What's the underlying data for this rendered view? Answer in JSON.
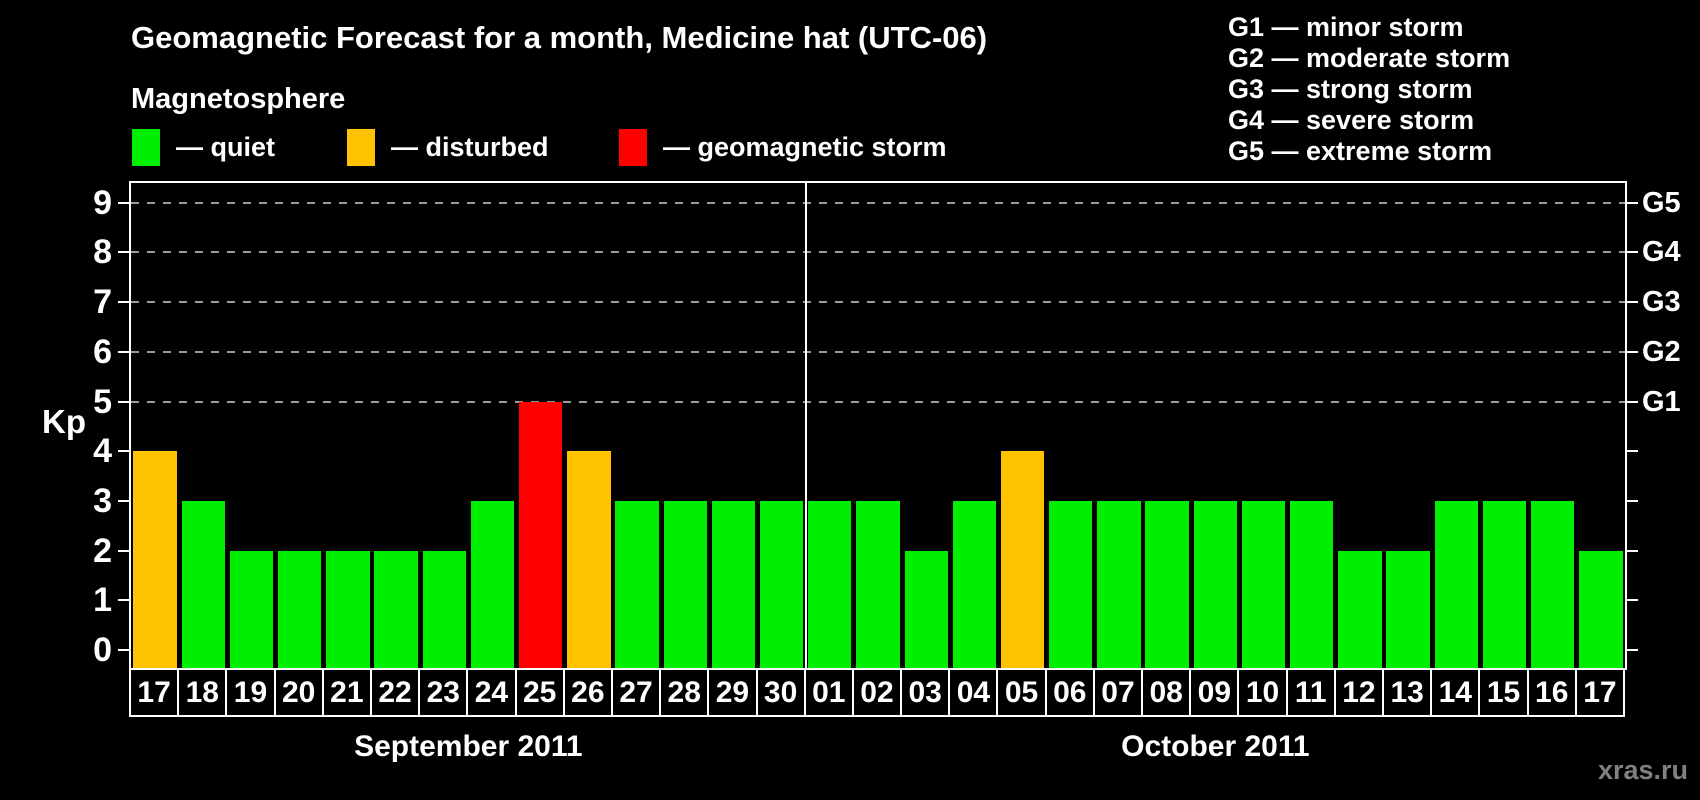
{
  "header": {
    "title": "Geomagnetic Forecast for a month, Medicine hat (UTC-06)",
    "subtitle": "Magnetosphere"
  },
  "status_legend": {
    "items": [
      {
        "key": "quiet",
        "label": "— quiet"
      },
      {
        "key": "disturbed",
        "label": "— disturbed"
      },
      {
        "key": "storm",
        "label": "— geomagnetic storm"
      }
    ]
  },
  "g_legend": {
    "items": [
      "G1 — minor storm",
      "G2 — moderate storm",
      "G3 — strong storm",
      "G4 — severe storm",
      "G5 — extreme storm"
    ]
  },
  "colors": {
    "quiet": "#00ee00",
    "disturbed": "#ffc200",
    "storm": "#ff0000",
    "grid": "#9a9a9a",
    "axis": "#ffffff",
    "watermark": "#808080"
  },
  "chart_data": {
    "type": "bar",
    "title": "Geomagnetic Forecast for a month, Medicine hat (UTC-06)",
    "ylabel": "Kp",
    "ylim": [
      0,
      9
    ],
    "yticks": [
      0,
      1,
      2,
      3,
      4,
      5,
      6,
      7,
      8,
      9
    ],
    "gridlines_at_kp": [
      5,
      6,
      7,
      8,
      9
    ],
    "right_axis": [
      {
        "kp": 5,
        "label": "G1"
      },
      {
        "kp": 6,
        "label": "G2"
      },
      {
        "kp": 7,
        "label": "G3"
      },
      {
        "kp": 8,
        "label": "G4"
      },
      {
        "kp": 9,
        "label": "G5"
      }
    ],
    "legend_position": "top",
    "grid": "dashed-on-storm-levels-only",
    "months": [
      {
        "label": "September 2011",
        "days": [
          {
            "day": "17",
            "kp": 4,
            "status": "disturbed"
          },
          {
            "day": "18",
            "kp": 3,
            "status": "quiet"
          },
          {
            "day": "19",
            "kp": 2,
            "status": "quiet"
          },
          {
            "day": "20",
            "kp": 2,
            "status": "quiet"
          },
          {
            "day": "21",
            "kp": 2,
            "status": "quiet"
          },
          {
            "day": "22",
            "kp": 2,
            "status": "quiet"
          },
          {
            "day": "23",
            "kp": 2,
            "status": "quiet"
          },
          {
            "day": "24",
            "kp": 3,
            "status": "quiet"
          },
          {
            "day": "25",
            "kp": 5,
            "status": "storm"
          },
          {
            "day": "26",
            "kp": 4,
            "status": "disturbed"
          },
          {
            "day": "27",
            "kp": 3,
            "status": "quiet"
          },
          {
            "day": "28",
            "kp": 3,
            "status": "quiet"
          },
          {
            "day": "29",
            "kp": 3,
            "status": "quiet"
          },
          {
            "day": "30",
            "kp": 3,
            "status": "quiet"
          }
        ]
      },
      {
        "label": "October 2011",
        "days": [
          {
            "day": "01",
            "kp": 3,
            "status": "quiet"
          },
          {
            "day": "02",
            "kp": 3,
            "status": "quiet"
          },
          {
            "day": "03",
            "kp": 2,
            "status": "quiet"
          },
          {
            "day": "04",
            "kp": 3,
            "status": "quiet"
          },
          {
            "day": "05",
            "kp": 4,
            "status": "disturbed"
          },
          {
            "day": "06",
            "kp": 3,
            "status": "quiet"
          },
          {
            "day": "07",
            "kp": 3,
            "status": "quiet"
          },
          {
            "day": "08",
            "kp": 3,
            "status": "quiet"
          },
          {
            "day": "09",
            "kp": 3,
            "status": "quiet"
          },
          {
            "day": "10",
            "kp": 3,
            "status": "quiet"
          },
          {
            "day": "11",
            "kp": 3,
            "status": "quiet"
          },
          {
            "day": "12",
            "kp": 2,
            "status": "quiet"
          },
          {
            "day": "13",
            "kp": 2,
            "status": "quiet"
          },
          {
            "day": "14",
            "kp": 3,
            "status": "quiet"
          },
          {
            "day": "15",
            "kp": 3,
            "status": "quiet"
          },
          {
            "day": "16",
            "kp": 3,
            "status": "quiet"
          },
          {
            "day": "17",
            "kp": 2,
            "status": "quiet"
          }
        ]
      }
    ]
  },
  "watermark": "xras.ru"
}
